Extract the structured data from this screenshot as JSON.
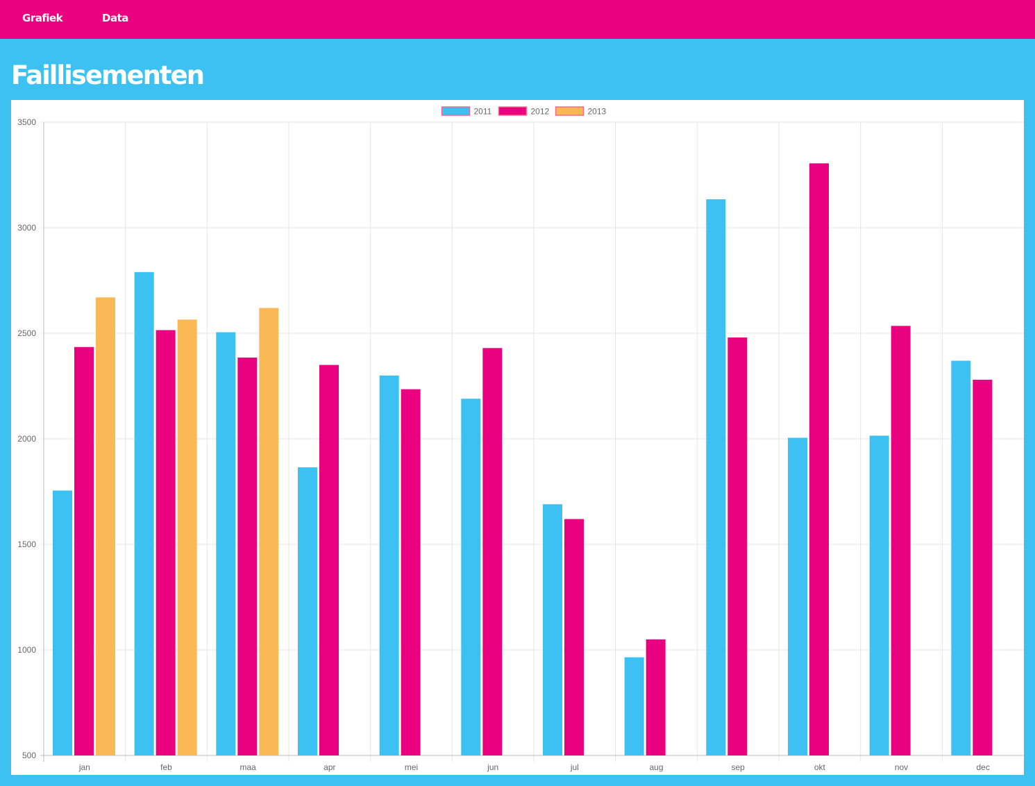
{
  "nav": {
    "items": [
      {
        "label": "Grafiek"
      },
      {
        "label": "Data"
      }
    ]
  },
  "page": {
    "title": "Faillisementen"
  },
  "colors": {
    "nav_bg": "#e9017f",
    "page_bg": "#3cc1f2",
    "legend_border": "#f26b8a"
  },
  "chart_data": {
    "type": "bar",
    "title": "",
    "xlabel": "",
    "ylabel": "",
    "categories": [
      "jan",
      "feb",
      "maa",
      "apr",
      "mei",
      "jun",
      "jul",
      "aug",
      "sep",
      "okt",
      "nov",
      "dec"
    ],
    "series": [
      {
        "name": "2011",
        "color": "#3cc1f2",
        "values": [
          1755,
          2790,
          2505,
          1865,
          2300,
          2190,
          1690,
          965,
          3135,
          2005,
          2015,
          2370
        ]
      },
      {
        "name": "2012",
        "color": "#e9017f",
        "values": [
          2435,
          2515,
          2385,
          2350,
          2235,
          2430,
          1620,
          1050,
          2480,
          3305,
          2535,
          2280
        ]
      },
      {
        "name": "2013",
        "color": "#fbb955",
        "values": [
          2670,
          2565,
          2620,
          null,
          null,
          null,
          null,
          null,
          null,
          null,
          null,
          null
        ]
      }
    ],
    "ylim": [
      500,
      3500
    ],
    "yticks": [
      "500",
      "1000",
      "1500",
      "2000",
      "2500",
      "3000",
      "3500"
    ],
    "grid": true,
    "legend_position": "top-center"
  }
}
